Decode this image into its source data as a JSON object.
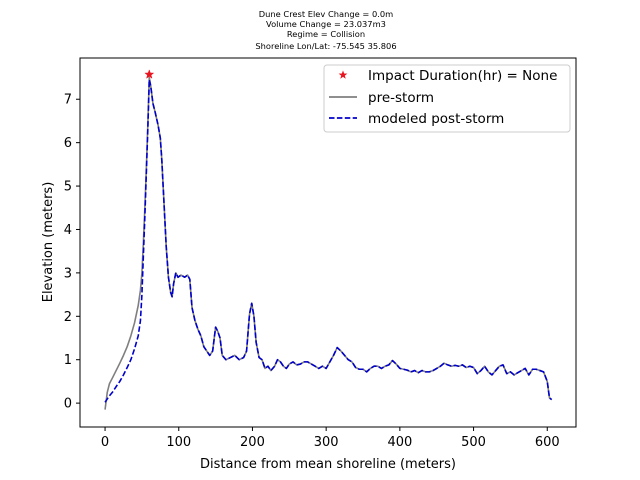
{
  "chart_data": {
    "type": "line",
    "title_lines": [
      "Dune Crest Elev Change = 0.0m",
      "Volume Change = 23.037m3",
      "Regime = Collision",
      "Shoreline Lon/Lat: -75.545 35.806"
    ],
    "xlabel": "Distance from mean shoreline (meters)",
    "ylabel": "Elevation (meters)",
    "xlim": [
      -34,
      639
    ],
    "ylim": [
      -0.55,
      7.95
    ],
    "x_ticks": [
      0,
      100,
      200,
      300,
      400,
      500,
      600
    ],
    "y_ticks": [
      0,
      1,
      2,
      3,
      4,
      5,
      6,
      7
    ],
    "grid": false,
    "legend_position": "upper-right",
    "legend": [
      "Impact Duration(hr) = None",
      "pre-storm",
      "modeled post-storm"
    ],
    "colors": {
      "impact_marker": "#e8141e",
      "pre_storm": "#7f7f7f",
      "post_storm": "#0000cc"
    },
    "impact_point": {
      "x": 60,
      "y": 7.57
    },
    "series": [
      {
        "name": "pre-storm",
        "style": "solid",
        "points": [
          [
            0,
            -0.15
          ],
          [
            3,
            0.25
          ],
          [
            6,
            0.45
          ],
          [
            10,
            0.58
          ],
          [
            15,
            0.75
          ],
          [
            20,
            0.92
          ],
          [
            25,
            1.1
          ],
          [
            30,
            1.3
          ],
          [
            35,
            1.55
          ],
          [
            40,
            1.85
          ],
          [
            45,
            2.25
          ],
          [
            48,
            2.6
          ],
          [
            50,
            3.0
          ],
          [
            52,
            3.7
          ],
          [
            54,
            4.5
          ],
          [
            56,
            5.4
          ],
          [
            58,
            6.4
          ],
          [
            60,
            7.5
          ],
          [
            62,
            7.3
          ],
          [
            65,
            6.9
          ],
          [
            68,
            6.7
          ],
          [
            72,
            6.4
          ],
          [
            75,
            6.1
          ],
          [
            77,
            5.6
          ],
          [
            80,
            4.6
          ],
          [
            83,
            3.6
          ],
          [
            86,
            2.9
          ],
          [
            89,
            2.55
          ],
          [
            91,
            2.45
          ],
          [
            93,
            2.75
          ],
          [
            96,
            3.0
          ],
          [
            99,
            2.9
          ],
          [
            103,
            2.95
          ],
          [
            108,
            2.9
          ],
          [
            112,
            2.95
          ],
          [
            115,
            2.85
          ],
          [
            118,
            2.2
          ],
          [
            122,
            1.9
          ],
          [
            126,
            1.7
          ],
          [
            130,
            1.55
          ],
          [
            134,
            1.3
          ],
          [
            138,
            1.2
          ],
          [
            142,
            1.1
          ],
          [
            146,
            1.2
          ],
          [
            150,
            1.75
          ],
          [
            153,
            1.65
          ],
          [
            156,
            1.5
          ],
          [
            159,
            1.1
          ],
          [
            164,
            1.0
          ],
          [
            170,
            1.05
          ],
          [
            176,
            1.1
          ],
          [
            182,
            1.0
          ],
          [
            188,
            1.05
          ],
          [
            192,
            1.2
          ],
          [
            196,
            2.05
          ],
          [
            199,
            2.3
          ],
          [
            202,
            2.0
          ],
          [
            205,
            1.4
          ],
          [
            209,
            1.05
          ],
          [
            213,
            1.0
          ],
          [
            217,
            0.8
          ],
          [
            221,
            0.85
          ],
          [
            225,
            0.75
          ],
          [
            230,
            0.85
          ],
          [
            234,
            1.0
          ],
          [
            238,
            0.95
          ],
          [
            242,
            0.85
          ],
          [
            246,
            0.8
          ],
          [
            250,
            0.9
          ],
          [
            255,
            0.95
          ],
          [
            260,
            0.88
          ],
          [
            265,
            0.9
          ],
          [
            270,
            0.95
          ],
          [
            275,
            0.95
          ],
          [
            280,
            0.9
          ],
          [
            285,
            0.85
          ],
          [
            290,
            0.8
          ],
          [
            295,
            0.85
          ],
          [
            300,
            0.8
          ],
          [
            305,
            0.95
          ],
          [
            310,
            1.1
          ],
          [
            315,
            1.28
          ],
          [
            320,
            1.2
          ],
          [
            325,
            1.1
          ],
          [
            330,
            1.0
          ],
          [
            335,
            0.95
          ],
          [
            340,
            0.82
          ],
          [
            345,
            0.78
          ],
          [
            350,
            0.78
          ],
          [
            355,
            0.72
          ],
          [
            360,
            0.8
          ],
          [
            365,
            0.85
          ],
          [
            370,
            0.85
          ],
          [
            375,
            0.8
          ],
          [
            380,
            0.85
          ],
          [
            385,
            0.88
          ],
          [
            390,
            0.98
          ],
          [
            395,
            0.9
          ],
          [
            400,
            0.8
          ],
          [
            405,
            0.78
          ],
          [
            410,
            0.76
          ],
          [
            415,
            0.72
          ],
          [
            420,
            0.75
          ],
          [
            425,
            0.7
          ],
          [
            430,
            0.75
          ],
          [
            435,
            0.72
          ],
          [
            440,
            0.72
          ],
          [
            445,
            0.75
          ],
          [
            450,
            0.8
          ],
          [
            455,
            0.85
          ],
          [
            460,
            0.92
          ],
          [
            465,
            0.88
          ],
          [
            470,
            0.85
          ],
          [
            475,
            0.87
          ],
          [
            480,
            0.85
          ],
          [
            485,
            0.88
          ],
          [
            490,
            0.82
          ],
          [
            495,
            0.85
          ],
          [
            500,
            0.82
          ],
          [
            505,
            0.68
          ],
          [
            510,
            0.75
          ],
          [
            515,
            0.85
          ],
          [
            520,
            0.72
          ],
          [
            525,
            0.65
          ],
          [
            530,
            0.75
          ],
          [
            535,
            0.85
          ],
          [
            540,
            0.88
          ],
          [
            545,
            0.68
          ],
          [
            550,
            0.72
          ],
          [
            555,
            0.65
          ],
          [
            560,
            0.7
          ],
          [
            565,
            0.75
          ],
          [
            570,
            0.8
          ],
          [
            575,
            0.65
          ],
          [
            580,
            0.78
          ],
          [
            585,
            0.78
          ],
          [
            590,
            0.75
          ],
          [
            595,
            0.72
          ],
          [
            600,
            0.5
          ],
          [
            603,
            0.12
          ],
          [
            606,
            0.08
          ]
        ]
      },
      {
        "name": "modeled post-storm",
        "style": "dashed",
        "points": [
          [
            0,
            0.02
          ],
          [
            5,
            0.15
          ],
          [
            10,
            0.25
          ],
          [
            15,
            0.38
          ],
          [
            20,
            0.5
          ],
          [
            25,
            0.65
          ],
          [
            30,
            0.82
          ],
          [
            35,
            1.0
          ],
          [
            40,
            1.25
          ],
          [
            45,
            1.55
          ],
          [
            48,
            1.9
          ],
          [
            50,
            2.5
          ],
          [
            52,
            3.4
          ],
          [
            54,
            4.3
          ],
          [
            56,
            5.3
          ],
          [
            58,
            6.3
          ],
          [
            60,
            7.45
          ],
          [
            62,
            7.3
          ],
          [
            65,
            6.9
          ],
          [
            68,
            6.7
          ],
          [
            72,
            6.4
          ],
          [
            75,
            6.1
          ],
          [
            77,
            5.6
          ],
          [
            80,
            4.6
          ],
          [
            83,
            3.6
          ],
          [
            86,
            2.9
          ],
          [
            89,
            2.55
          ],
          [
            91,
            2.45
          ],
          [
            93,
            2.75
          ],
          [
            96,
            3.0
          ],
          [
            99,
            2.9
          ],
          [
            103,
            2.95
          ],
          [
            108,
            2.9
          ],
          [
            112,
            2.95
          ],
          [
            115,
            2.85
          ],
          [
            118,
            2.2
          ],
          [
            122,
            1.9
          ],
          [
            126,
            1.7
          ],
          [
            130,
            1.55
          ],
          [
            134,
            1.3
          ],
          [
            138,
            1.2
          ],
          [
            142,
            1.1
          ],
          [
            146,
            1.2
          ],
          [
            150,
            1.75
          ],
          [
            153,
            1.65
          ],
          [
            156,
            1.5
          ],
          [
            159,
            1.1
          ],
          [
            164,
            1.0
          ],
          [
            170,
            1.05
          ],
          [
            176,
            1.1
          ],
          [
            182,
            1.0
          ],
          [
            188,
            1.05
          ],
          [
            192,
            1.2
          ],
          [
            196,
            2.05
          ],
          [
            199,
            2.3
          ],
          [
            202,
            2.0
          ],
          [
            205,
            1.4
          ],
          [
            209,
            1.05
          ],
          [
            213,
            1.0
          ],
          [
            217,
            0.8
          ],
          [
            221,
            0.85
          ],
          [
            225,
            0.75
          ],
          [
            230,
            0.85
          ],
          [
            234,
            1.0
          ],
          [
            238,
            0.95
          ],
          [
            242,
            0.85
          ],
          [
            246,
            0.8
          ],
          [
            250,
            0.9
          ],
          [
            255,
            0.95
          ],
          [
            260,
            0.88
          ],
          [
            265,
            0.9
          ],
          [
            270,
            0.95
          ],
          [
            275,
            0.95
          ],
          [
            280,
            0.9
          ],
          [
            285,
            0.85
          ],
          [
            290,
            0.8
          ],
          [
            295,
            0.85
          ],
          [
            300,
            0.8
          ],
          [
            305,
            0.95
          ],
          [
            310,
            1.1
          ],
          [
            315,
            1.28
          ],
          [
            320,
            1.2
          ],
          [
            325,
            1.1
          ],
          [
            330,
            1.0
          ],
          [
            335,
            0.95
          ],
          [
            340,
            0.82
          ],
          [
            345,
            0.78
          ],
          [
            350,
            0.78
          ],
          [
            355,
            0.72
          ],
          [
            360,
            0.8
          ],
          [
            365,
            0.85
          ],
          [
            370,
            0.85
          ],
          [
            375,
            0.8
          ],
          [
            380,
            0.85
          ],
          [
            385,
            0.88
          ],
          [
            390,
            0.98
          ],
          [
            395,
            0.9
          ],
          [
            400,
            0.8
          ],
          [
            405,
            0.78
          ],
          [
            410,
            0.76
          ],
          [
            415,
            0.72
          ],
          [
            420,
            0.75
          ],
          [
            425,
            0.7
          ],
          [
            430,
            0.75
          ],
          [
            435,
            0.72
          ],
          [
            440,
            0.72
          ],
          [
            445,
            0.75
          ],
          [
            450,
            0.8
          ],
          [
            455,
            0.85
          ],
          [
            460,
            0.92
          ],
          [
            465,
            0.88
          ],
          [
            470,
            0.85
          ],
          [
            475,
            0.87
          ],
          [
            480,
            0.85
          ],
          [
            485,
            0.88
          ],
          [
            490,
            0.82
          ],
          [
            495,
            0.85
          ],
          [
            500,
            0.82
          ],
          [
            505,
            0.68
          ],
          [
            510,
            0.75
          ],
          [
            515,
            0.85
          ],
          [
            520,
            0.72
          ],
          [
            525,
            0.65
          ],
          [
            530,
            0.75
          ],
          [
            535,
            0.85
          ],
          [
            540,
            0.88
          ],
          [
            545,
            0.68
          ],
          [
            550,
            0.72
          ],
          [
            555,
            0.65
          ],
          [
            560,
            0.7
          ],
          [
            565,
            0.75
          ],
          [
            570,
            0.8
          ],
          [
            575,
            0.65
          ],
          [
            580,
            0.78
          ],
          [
            585,
            0.78
          ],
          [
            590,
            0.75
          ],
          [
            595,
            0.72
          ],
          [
            600,
            0.5
          ],
          [
            603,
            0.12
          ],
          [
            606,
            0.08
          ]
        ]
      }
    ]
  }
}
